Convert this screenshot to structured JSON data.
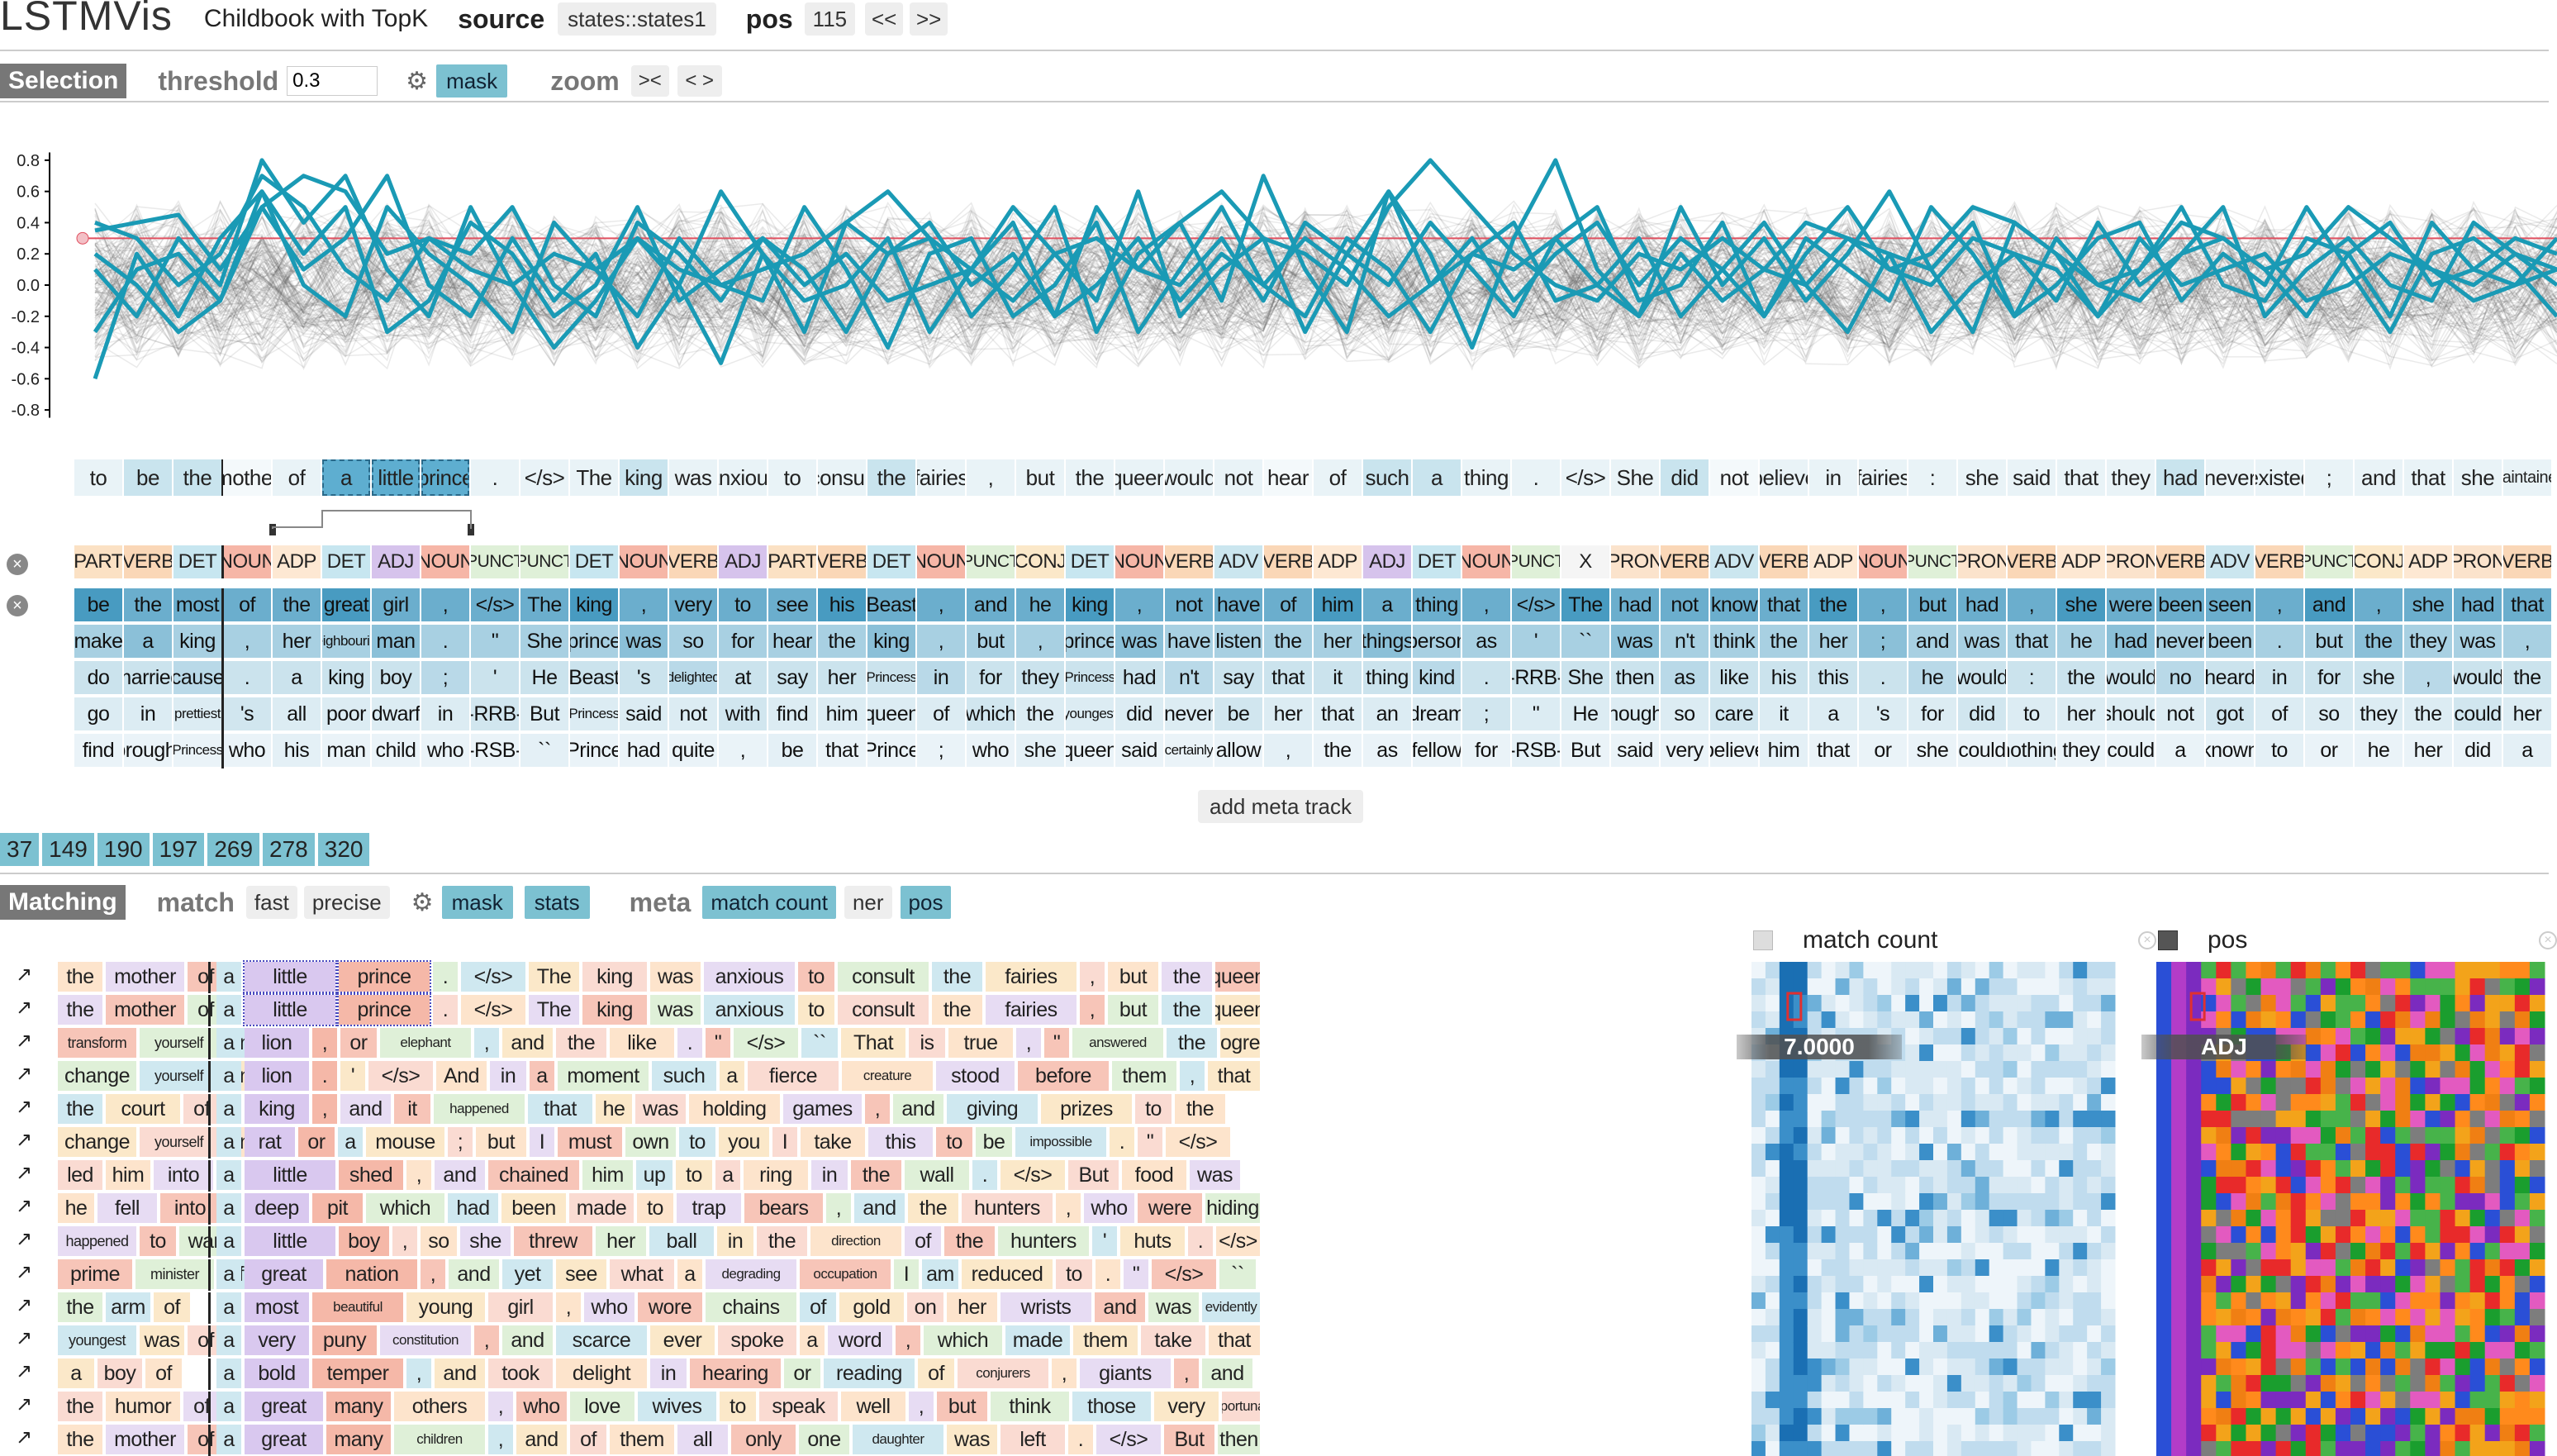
{
  "header": {
    "logo": "LSTMVis",
    "title": "Childbook with TopK",
    "source_label": "source",
    "source_value": "states::states1",
    "pos_label": "pos",
    "pos_value": "115",
    "prev": "<<",
    "next": ">>"
  },
  "selection": {
    "tag": "Selection",
    "threshold_label": "threshold",
    "threshold_value": "0.3",
    "mask": "mask",
    "zoom_label": "zoom",
    "zoom_in": "><",
    "zoom_out": "< >"
  },
  "chart_data": {
    "type": "line",
    "ylim": [
      -0.9,
      0.9
    ],
    "yticks": [
      "0.8",
      "0.6",
      "0.4",
      "0.2",
      "0.0",
      "-0.2",
      "-0.4",
      "-0.6",
      "-0.8"
    ],
    "threshold": 0.3,
    "n_points": 60,
    "series": [
      [
        0.35,
        0.4,
        0.45,
        0.1,
        0.5,
        0.7,
        0.6,
        0.2,
        0.3,
        0.1,
        0.0,
        0.2,
        0.1,
        0.3,
        0.1,
        0.0,
        0.1,
        0.2,
        0.4,
        0.2,
        0.3,
        0.1,
        -0.1,
        0.2,
        0.3,
        0.1,
        0.4,
        0.6,
        0.3,
        0.2,
        0.0,
        0.5,
        0.8,
        0.5,
        0.2,
        0.0,
        -0.1,
        0.2,
        0.1,
        0.3,
        0.1,
        0.4,
        0.3,
        0.1,
        0.2,
        0.5,
        0.4,
        0.2,
        0.0,
        0.1,
        0.4,
        0.3,
        0.1,
        0.2,
        0.5,
        0.3,
        0.1,
        0.0,
        0.2,
        0.1
      ],
      [
        -0.6,
        0.2,
        -0.2,
        0.3,
        0.6,
        0.2,
        0.5,
        -0.3,
        -0.1,
        0.4,
        0.2,
        -0.2,
        0.0,
        0.5,
        -0.1,
        0.1,
        0.3,
        0.0,
        0.2,
        -0.1,
        0.0,
        0.1,
        0.4,
        -0.2,
        0.0,
        0.3,
        -0.1,
        0.2,
        0.0,
        0.3,
        0.1,
        -0.2,
        0.0,
        0.2,
        0.1,
        0.3,
        0.0,
        -0.2,
        0.2,
        -0.1,
        0.1,
        0.0,
        0.3,
        0.2,
        -0.3,
        0.0,
        0.2,
        0.1,
        -0.2,
        0.3,
        0.0,
        0.1,
        0.2,
        -0.1,
        0.0,
        0.2,
        0.1,
        -0.1,
        0.0,
        0.1
      ],
      [
        0.1,
        -0.2,
        0.3,
        0.0,
        0.8,
        0.4,
        0.7,
        0.1,
        -0.2,
        0.5,
        0.0,
        -0.4,
        -0.1,
        0.3,
        0.0,
        -0.5,
        0.2,
        -0.3,
        0.4,
        0.6,
        0.3,
        -0.2,
        0.1,
        0.5,
        -0.3,
        0.2,
        0.4,
        -0.1,
        0.7,
        0.1,
        -0.3,
        0.6,
        0.2,
        -0.4,
        0.3,
        0.8,
        0.1,
        -0.2,
        0.5,
        0.0,
        0.3,
        -0.1,
        0.2,
        0.6,
        0.1,
        -0.3,
        0.4,
        0.2,
        -0.2,
        0.1,
        0.5,
        0.0,
        -0.1,
        0.3,
        0.2,
        -0.2,
        0.4,
        0.1,
        0.0,
        0.3
      ],
      [
        0.2,
        0.0,
        -0.3,
        -0.1,
        0.5,
        0.1,
        0.3,
        0.7,
        0.0,
        -0.2,
        0.3,
        -0.1,
        0.2,
        -0.4,
        0.0,
        0.6,
        0.2,
        -0.1,
        0.0,
        0.3,
        -0.3,
        0.1,
        0.5,
        0.2,
        -0.1,
        0.6,
        -0.2,
        0.1,
        0.3,
        -0.3,
        0.2,
        0.0,
        0.4,
        0.1,
        -0.2,
        0.3,
        0.5,
        -0.1,
        0.0,
        0.4,
        -0.2,
        0.3,
        0.1,
        -0.1,
        0.5,
        0.2,
        -0.2,
        0.0,
        0.3,
        0.4,
        -0.1,
        0.2,
        0.0,
        0.5,
        0.1,
        -0.3,
        0.2,
        0.3,
        0.1,
        -0.2
      ],
      [
        -0.3,
        0.1,
        0.2,
        -0.1,
        0.6,
        0.0,
        -0.2,
        0.5,
        0.2,
        0.0,
        -0.3,
        0.4,
        0.1,
        -0.2,
        0.3,
        0.0,
        -0.1,
        0.5,
        0.1,
        -0.4,
        0.2,
        0.3,
        -0.2,
        0.0,
        0.4,
        -0.3,
        0.1,
        0.5,
        0.0,
        -0.2,
        0.3,
        0.1,
        -0.3,
        0.2,
        0.4,
        -0.1,
        0.0,
        0.3,
        -0.2,
        0.1,
        0.4,
        0.0,
        -0.3,
        0.2,
        0.1,
        0.4,
        -0.2,
        0.3,
        0.0,
        -0.1,
        0.2,
        0.5,
        -0.2,
        0.1,
        0.3,
        0.0,
        -0.1,
        0.4,
        0.2,
        0.0
      ],
      [
        0.4,
        0.3,
        0.0,
        0.2,
        0.7,
        0.5,
        0.1,
        -0.1,
        0.3,
        0.2,
        0.5,
        0.0,
        -0.2,
        0.4,
        0.2,
        -0.1,
        0.3,
        0.1,
        -0.3,
        0.2,
        0.4,
        0.0,
        0.2,
        -0.2,
        0.5,
        0.1,
        0.0,
        0.3,
        -0.1,
        0.4,
        0.2,
        0.6,
        0.0,
        0.3,
        -0.1,
        0.2,
        0.4,
        0.0,
        0.3,
        0.1,
        -0.2,
        0.2,
        0.5,
        0.1,
        0.0,
        0.3,
        0.2,
        -0.1,
        0.4,
        0.0,
        0.2,
        0.3,
        0.1,
        -0.2,
        0.2,
        0.4,
        0.0,
        0.1,
        0.3,
        0.2
      ]
    ]
  },
  "words_row": [
    "to",
    "be",
    "the",
    "mother",
    "of",
    "a",
    "little",
    "prince",
    ".",
    "</s>",
    "The",
    "king",
    "was",
    "anxious",
    "to",
    "consult",
    "the",
    "fairies",
    ",",
    "but",
    "the",
    "queen",
    "would",
    "not",
    "hear",
    "of",
    "such",
    "a",
    "thing",
    ".",
    "</s>",
    "She",
    "did",
    "not",
    "believe",
    "in",
    "fairies",
    ":",
    "she",
    "said",
    "that",
    "they",
    "had",
    "never",
    "existed",
    ";",
    "and",
    "that",
    "she",
    "maintained"
  ],
  "pos_row": [
    "PART",
    "VERB",
    "DET",
    "NOUN",
    "ADP",
    "DET",
    "ADJ",
    "NOUN",
    "PUNCT",
    "PUNCT",
    "DET",
    "NOUN",
    "VERB",
    "ADJ",
    "PART",
    "VERB",
    "DET",
    "NOUN",
    "PUNCT",
    "CONJ",
    "DET",
    "NOUN",
    "VERB",
    "ADV",
    "VERB",
    "ADP",
    "ADJ",
    "DET",
    "NOUN",
    "PUNCT",
    "X",
    "PRON",
    "VERB",
    "ADV",
    "VERB",
    "ADP",
    "NOUN",
    "PUNCT",
    "PRON",
    "VERB",
    "ADP",
    "PRON",
    "VERB",
    "ADV",
    "VERB",
    "PUNCT",
    "CONJ",
    "ADP",
    "PRON",
    "VERB"
  ],
  "topk_rows": [
    [
      "be",
      "the",
      "most",
      "of",
      "the",
      "great",
      "girl",
      ",",
      "</s>",
      "The",
      "king",
      ",",
      "very",
      "to",
      "see",
      "his",
      "Beast",
      ",",
      "and",
      "he",
      "king",
      ",",
      "not",
      "have",
      "of",
      "him",
      "a",
      "thing",
      ",",
      "</s>",
      "The",
      "had",
      "not",
      "know",
      "that",
      "the",
      ",",
      "but",
      "had",
      ",",
      "she",
      "were",
      "been",
      "seen",
      ",",
      "and",
      ",",
      "she",
      "had",
      "that"
    ],
    [
      "make",
      "a",
      "king",
      ",",
      "her",
      "neighbouring",
      "man",
      ".",
      "\"",
      "She",
      "prince",
      "was",
      "so",
      "for",
      "hear",
      "the",
      "king",
      ",",
      "but",
      ",",
      "prince",
      "was",
      "have",
      "listen",
      "the",
      "her",
      "things",
      "person",
      "as",
      "'",
      "``",
      "was",
      "n't",
      "think",
      "the",
      "her",
      ";",
      "and",
      "was",
      "that",
      "he",
      "had",
      "never",
      "been",
      ".",
      "but",
      "the",
      "they",
      "was",
      ","
    ],
    [
      "do",
      "married",
      "cause",
      ".",
      "a",
      "king",
      "boy",
      ";",
      "'",
      "He",
      "Beast",
      "'s",
      "delighted",
      "at",
      "say",
      "her",
      "Princess",
      "in",
      "for",
      "they",
      "Princess",
      "had",
      "n't",
      "say",
      "that",
      "it",
      "thing",
      "kind",
      ".",
      "-RRB-",
      "She",
      "then",
      "as",
      "like",
      "his",
      "this",
      ".",
      "he",
      "would",
      ":",
      "the",
      "would",
      "no",
      "heard",
      "in",
      "for",
      "she",
      ",",
      "would",
      "the"
    ],
    [
      "go",
      "in",
      "prettiest",
      "'s",
      "all",
      "poor",
      "dwarf",
      "in",
      "-RRB-",
      "But",
      "Princess",
      "said",
      "not",
      "with",
      "find",
      "him",
      "queen",
      "of",
      "which",
      "the",
      "youngest",
      "did",
      "never",
      "be",
      "her",
      "that",
      "an",
      "dream",
      ";",
      "\"",
      "He",
      "thought",
      "so",
      "care",
      "it",
      "a",
      "'s",
      "for",
      "did",
      "to",
      "her",
      "should",
      "not",
      "got",
      "of",
      "so",
      "they",
      "the",
      "could",
      "her"
    ],
    [
      "find",
      "brought",
      "Princess",
      "who",
      "his",
      "man",
      "child",
      "who",
      "-RSB-",
      "``",
      "Prince",
      "had",
      "quite",
      ",",
      "be",
      "that",
      "Prince",
      ";",
      "who",
      "she",
      "queen",
      "said",
      "certainly",
      "allow",
      ",",
      "the",
      "as",
      "fellow",
      "for",
      "-RSB-",
      "But",
      "said",
      "very",
      "believe",
      "him",
      "that",
      "or",
      "she",
      "could",
      "nothing",
      "they",
      "could",
      "a",
      "known",
      "to",
      "or",
      "he",
      "her",
      "did",
      "a"
    ]
  ],
  "add_meta": "add meta track",
  "selected_cells": [
    "37",
    "149",
    "190",
    "197",
    "269",
    "278",
    "320"
  ],
  "matching": {
    "tag": "Matching",
    "match_label": "match",
    "fast": "fast",
    "precise": "precise",
    "mask": "mask",
    "stats": "stats",
    "meta_label": "meta",
    "meta_match_count": "match count",
    "meta_ner": "ner",
    "meta_pos": "pos"
  },
  "match_rows": [
    [
      "the mother of",
      "a little prince . </s> The king was anxious to consult the fairies , but the queen would not hear of"
    ],
    [
      "the mother of",
      "a little prince . </s> The king was anxious to consult the fairies , but the queen would not hear of"
    ],
    [
      "transform yourself into",
      "a lion , or elephant , and the like . \" </s> `` That is true , \" answered the ogre"
    ],
    [
      "change yourself into",
      "a lion . ' </s> And in a moment such a fierce creature stood before them , that all the guests"
    ],
    [
      "the court of",
      "a king , and it happened that he was holding games , and giving prizes to the best runners , boxers"
    ],
    [
      "change yourself into",
      "a rat or a mouse ; but I must own to you I take this to be impossible . \" </s>"
    ],
    [
      "led him into",
      "a little shed , and chained him up to a ring in the wall . </s> But food was given him"
    ],
    [
      "he fell into",
      "a deep pit which had been made to trap bears , and the hunters , who were hiding in a tree"
    ],
    [
      "happened to want",
      "a little boy , so she threw her ball in the direction of the hunters ' huts . </s> A child"
    ],
    [
      "prime minister of",
      "a great nation , and yet see what a degrading occupation I am reduced to . \" </s> `` Listen to"
    ],
    [
      "the arm of",
      "a most beautiful young girl , who wore chains of gold on her wrists and was evidently her slave . \""
    ],
    [
      "youngest was of",
      "a very puny constitution , and scarce ever spoke a word , which made them take that for stupidity which was"
    ],
    [
      "a boy of",
      "a bold temper , and took delight in hearing or reading of conjurers , giants , and fairies ; and used"
    ],
    [
      "the humor of",
      "a great many others , who love wives to speak well , but think those very importunate who are continually doing"
    ],
    [
      "the mother of",
      "a great many children , and of them all only one daughter was left . </s> But then she was worth"
    ]
  ],
  "meta_panels": {
    "match_count_title": "match count",
    "match_count_value": "7.0000",
    "pos_title": "pos",
    "pos_value": "ADJ"
  },
  "colors": {
    "accent": "#1a9ab5",
    "topk": "#7cc1d1",
    "threshold_line": "#e05060"
  }
}
